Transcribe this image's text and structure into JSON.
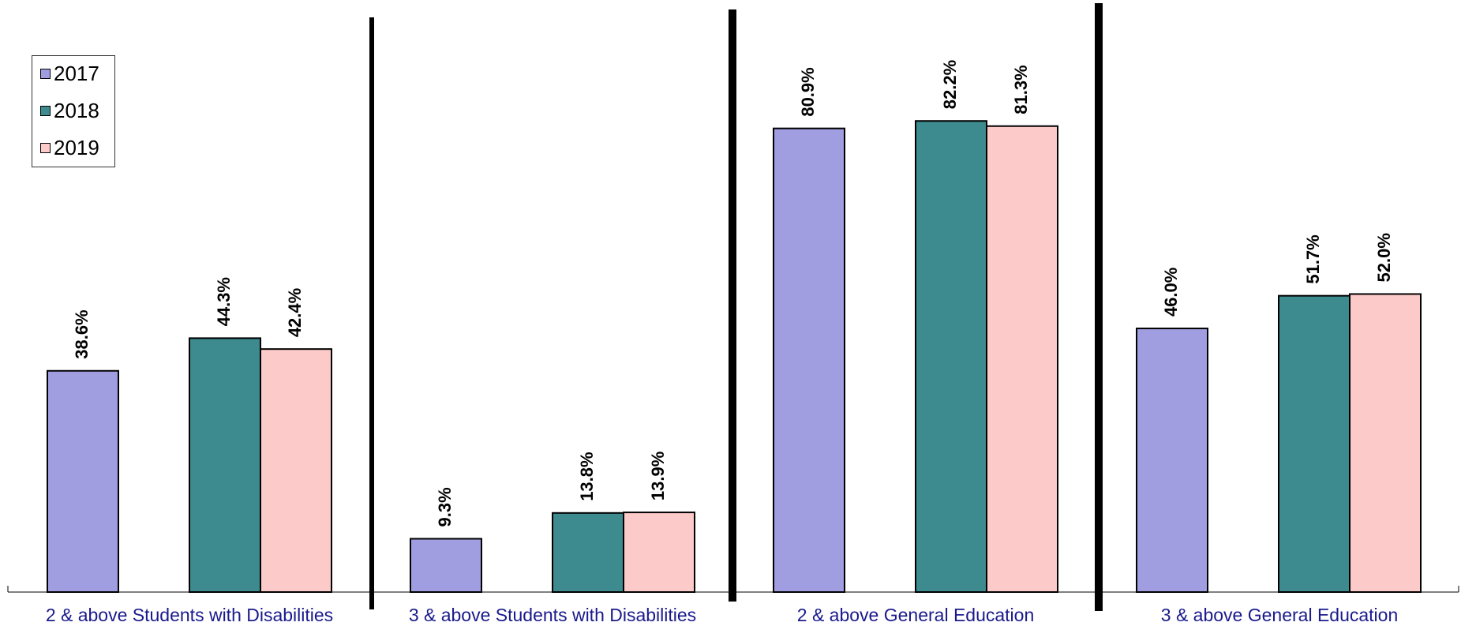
{
  "chart_data": {
    "type": "bar",
    "title": "",
    "xlabel": "",
    "ylabel": "",
    "ylim": [
      0,
      100
    ],
    "grid": false,
    "legend_position": "top-left",
    "categories": [
      "2 & above Students with Disabilities",
      "3 & above Students with Disabilities",
      "2 & above General Education",
      "3 & above General Education"
    ],
    "series": [
      {
        "name": "2017",
        "color": "#a09ee0",
        "values": [
          38.6,
          9.3,
          80.9,
          46.0
        ],
        "labels": [
          "38.6%",
          "9.3%",
          "80.9%",
          "46.0%"
        ]
      },
      {
        "name": "2018",
        "color": "#3d8a8f",
        "values": [
          44.3,
          13.8,
          82.2,
          51.7
        ],
        "labels": [
          "44.3%",
          "13.8%",
          "82.2%",
          "51.7%"
        ]
      },
      {
        "name": "2019",
        "color": "#fdcaca",
        "values": [
          42.4,
          13.9,
          81.3,
          52.0
        ],
        "labels": [
          "42.4%",
          "13.9%",
          "81.3%",
          "52.0%"
        ]
      }
    ]
  }
}
